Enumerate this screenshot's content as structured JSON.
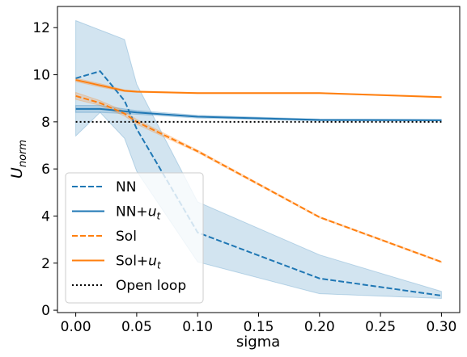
{
  "chart_data": {
    "type": "line",
    "xlabel": "sigma",
    "ylabel_base": "U",
    "ylabel_sub": "norm",
    "xlim": [
      -0.015,
      0.315
    ],
    "ylim": [
      -0.1,
      12.9
    ],
    "xticks": [
      0.0,
      0.05,
      0.1,
      0.15,
      0.2,
      0.25,
      0.3
    ],
    "xtick_labels": [
      "0.00",
      "0.05",
      "0.10",
      "0.15",
      "0.20",
      "0.25",
      "0.30"
    ],
    "yticks": [
      0,
      2,
      4,
      6,
      8,
      10,
      12
    ],
    "ytick_labels": [
      "0",
      "2",
      "4",
      "6",
      "8",
      "10",
      "12"
    ],
    "grid": false,
    "legend_position": "lower-left",
    "series": [
      {
        "name": "NN",
        "legend_base": "NN",
        "legend_sub": "",
        "color": "#1f77b4",
        "dash": "dashed",
        "x": [
          0.0,
          0.02,
          0.04,
          0.05,
          0.1,
          0.2,
          0.3
        ],
        "y": [
          9.85,
          10.15,
          8.9,
          7.7,
          3.3,
          1.35,
          0.62
        ],
        "band_upper": [
          12.3,
          11.9,
          11.5,
          9.6,
          4.6,
          2.35,
          0.8
        ],
        "band_lower": [
          7.4,
          8.4,
          7.3,
          5.9,
          2.05,
          0.7,
          0.5
        ],
        "band_color": "#1f77b4"
      },
      {
        "name": "NN+u_t",
        "legend_base": "NN+",
        "legend_sub": "t",
        "legend_italic": "u",
        "color": "#1f77b4",
        "dash": "solid",
        "x": [
          0.0,
          0.02,
          0.04,
          0.05,
          0.1,
          0.2,
          0.3
        ],
        "y": [
          8.55,
          8.55,
          8.45,
          8.4,
          8.22,
          8.08,
          8.07
        ],
        "band_upper": [
          8.7,
          8.7,
          8.55,
          8.48,
          8.28,
          8.12,
          8.1
        ],
        "band_lower": [
          8.4,
          8.4,
          8.35,
          8.32,
          8.16,
          8.04,
          8.04
        ],
        "band_color": "#1f77b4"
      },
      {
        "name": "Sol",
        "legend_base": "Sol",
        "legend_sub": "",
        "color": "#ff7f0e",
        "dash": "dashed",
        "x": [
          0.0,
          0.02,
          0.04,
          0.05,
          0.1,
          0.2,
          0.3
        ],
        "y": [
          9.1,
          8.8,
          8.35,
          8.0,
          6.75,
          3.95,
          2.05
        ],
        "band_upper": [
          9.25,
          8.9,
          8.45,
          8.1,
          6.8,
          3.98,
          2.08
        ],
        "band_lower": [
          8.95,
          8.7,
          8.25,
          7.9,
          6.7,
          3.92,
          2.02
        ],
        "band_color": "#ff7f0e"
      },
      {
        "name": "Sol+u_t",
        "legend_base": "Sol+",
        "legend_sub": "t",
        "legend_italic": "u",
        "color": "#ff7f0e",
        "dash": "solid",
        "x": [
          0.0,
          0.02,
          0.04,
          0.05,
          0.1,
          0.2,
          0.3
        ],
        "y": [
          9.78,
          9.55,
          9.32,
          9.28,
          9.22,
          9.22,
          9.05
        ],
        "band_upper": [
          9.85,
          9.62,
          9.36,
          9.31,
          9.24,
          9.24,
          9.07
        ],
        "band_lower": [
          9.71,
          9.48,
          9.28,
          9.25,
          9.2,
          9.2,
          9.03
        ],
        "band_color": "#ff7f0e"
      },
      {
        "name": "Open loop",
        "legend_base": "Open loop",
        "legend_sub": "",
        "color": "#000000",
        "dash": "dotted",
        "x": [
          0.0,
          0.3
        ],
        "y": [
          8.0,
          8.0
        ]
      }
    ]
  }
}
